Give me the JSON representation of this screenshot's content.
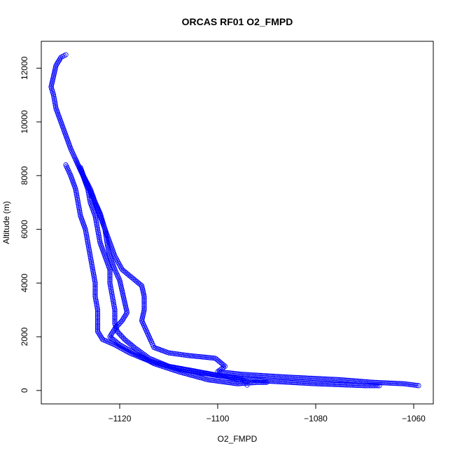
{
  "chart_data": {
    "type": "scatter",
    "title": "ORCAS RF01 O2_FMPD",
    "xlabel": "O2_FMPD",
    "ylabel": "Altitude (m)",
    "xlim": [
      -1136,
      -1056
    ],
    "ylim": [
      -500,
      13000
    ],
    "xticks": [
      -1120,
      -1100,
      -1080,
      -1060
    ],
    "yticks": [
      0,
      2000,
      4000,
      6000,
      8000,
      10000,
      12000
    ],
    "grid": false,
    "color": "#0000ff",
    "marker": "open-circle",
    "connect_points": true,
    "series": [
      {
        "values": [
          [
            -1131,
            12500
          ],
          [
            -1132,
            12400
          ],
          [
            -1133,
            12100
          ],
          [
            -1133.5,
            11700
          ],
          [
            -1134,
            11300
          ],
          [
            -1133.5,
            11000
          ],
          [
            -1133,
            10500
          ],
          [
            -1132,
            10000
          ],
          [
            -1131,
            9500
          ],
          [
            -1130,
            9000
          ],
          [
            -1129,
            8600
          ],
          [
            -1127.5,
            8000
          ],
          [
            -1126.5,
            7500
          ],
          [
            -1126,
            7000
          ],
          [
            -1125,
            6500
          ],
          [
            -1124.5,
            6000
          ],
          [
            -1124,
            5500
          ],
          [
            -1123,
            5000
          ],
          [
            -1122,
            4500
          ],
          [
            -1122,
            4000
          ],
          [
            -1121.5,
            3500
          ],
          [
            -1121,
            3000
          ],
          [
            -1121,
            2500
          ],
          [
            -1120.5,
            2200
          ],
          [
            -1119,
            1900
          ],
          [
            -1117,
            1600
          ],
          [
            -1114,
            1200
          ],
          [
            -1110,
            900
          ],
          [
            -1104,
            700
          ],
          [
            -1098,
            500
          ],
          [
            -1094,
            350
          ],
          [
            -1094,
            200
          ]
        ]
      },
      {
        "values": [
          [
            -1131,
            8400
          ],
          [
            -1130,
            8000
          ],
          [
            -1129,
            7500
          ],
          [
            -1128.5,
            7000
          ],
          [
            -1128,
            6500
          ],
          [
            -1127,
            6000
          ],
          [
            -1126.5,
            5500
          ],
          [
            -1126,
            5000
          ],
          [
            -1125.5,
            4500
          ],
          [
            -1125,
            4000
          ],
          [
            -1125,
            3500
          ],
          [
            -1124.5,
            3000
          ],
          [
            -1124.5,
            2500
          ],
          [
            -1124.5,
            2200
          ],
          [
            -1123.5,
            1900
          ],
          [
            -1121,
            1700
          ],
          [
            -1118,
            1400
          ],
          [
            -1114,
            1100
          ],
          [
            -1108,
            800
          ],
          [
            -1100,
            550
          ],
          [
            -1090,
            350
          ],
          [
            -1080,
            250
          ],
          [
            -1070,
            180
          ],
          [
            -1067,
            180
          ]
        ]
      },
      {
        "values": [
          [
            -1129,
            8600
          ],
          [
            -1128,
            8200
          ],
          [
            -1126,
            7500
          ],
          [
            -1125,
            7000
          ],
          [
            -1124,
            6500
          ],
          [
            -1123,
            6000
          ],
          [
            -1122,
            5500
          ],
          [
            -1121,
            5000
          ],
          [
            -1119.5,
            4500
          ],
          [
            -1117.5,
            4200
          ],
          [
            -1115.5,
            3900
          ],
          [
            -1115,
            3500
          ],
          [
            -1115,
            3000
          ],
          [
            -1115.5,
            2600
          ],
          [
            -1114.5,
            2200
          ],
          [
            -1113.5,
            1800
          ],
          [
            -1113,
            1600
          ],
          [
            -1110,
            1400
          ],
          [
            -1106,
            1300
          ],
          [
            -1100.5,
            1200
          ],
          [
            -1098.5,
            900
          ],
          [
            -1100,
            700
          ],
          [
            -1095,
            600
          ],
          [
            -1086,
            500
          ],
          [
            -1075,
            400
          ],
          [
            -1068,
            300
          ],
          [
            -1062,
            250
          ],
          [
            -1059,
            180
          ]
        ]
      },
      {
        "values": [
          [
            -1128,
            8300
          ],
          [
            -1127,
            7800
          ],
          [
            -1125.5,
            7200
          ],
          [
            -1124,
            6600
          ],
          [
            -1123,
            6000
          ],
          [
            -1122.5,
            5400
          ],
          [
            -1122,
            5000
          ],
          [
            -1121,
            4500
          ],
          [
            -1120,
            4100
          ],
          [
            -1119.5,
            3700
          ],
          [
            -1119,
            3300
          ],
          [
            -1118.5,
            2900
          ],
          [
            -1119.5,
            2600
          ],
          [
            -1121,
            2300
          ],
          [
            -1122,
            2000
          ],
          [
            -1120,
            1700
          ],
          [
            -1117,
            1400
          ],
          [
            -1113,
            1000
          ],
          [
            -1108,
            700
          ],
          [
            -1102,
            400
          ],
          [
            -1096,
            250
          ],
          [
            -1092,
            300
          ],
          [
            -1090,
            300
          ]
        ]
      }
    ]
  }
}
